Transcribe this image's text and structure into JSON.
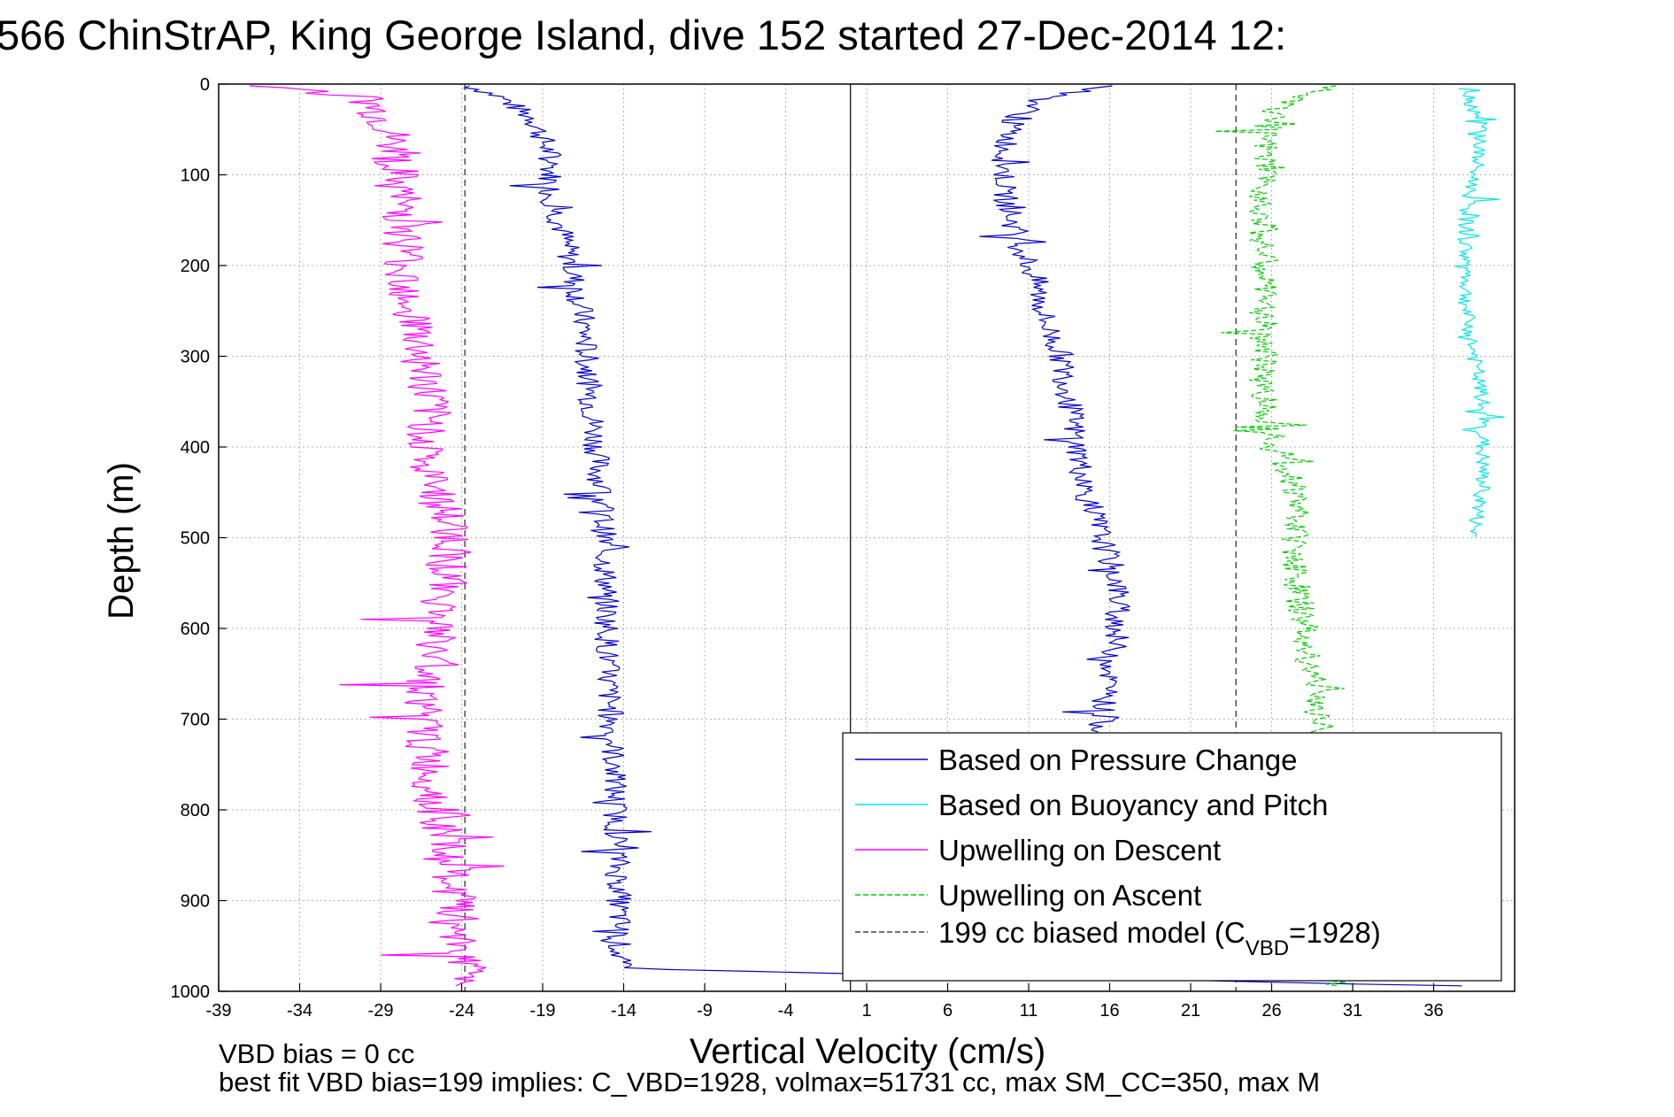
{
  "chart_data": {
    "type": "line",
    "title": "566 ChinStrAP, King George Island, dive 152 started 27-Dec-2014 12:",
    "xlabel": "Vertical Velocity (cm/s)",
    "ylabel": "Depth (m)",
    "xlim": [
      -39,
      41
    ],
    "ylim": [
      0,
      1000
    ],
    "y_reversed": true,
    "grid": true,
    "x_ticks": [
      -39,
      -34,
      -29,
      -24,
      -19,
      -14,
      -9,
      -4,
      1,
      6,
      11,
      16,
      21,
      26,
      31,
      36
    ],
    "y_ticks": [
      0,
      100,
      200,
      300,
      400,
      500,
      600,
      700,
      800,
      900,
      1000
    ],
    "x_tick_labels": [
      "-39",
      "-34",
      "-29",
      "-24",
      "-19",
      "-14",
      "-9",
      "-4",
      "1",
      "6",
      "11",
      "16",
      "21",
      "26",
      "31",
      "36"
    ],
    "y_tick_labels": [
      "0",
      "100",
      "200",
      "300",
      "400",
      "500",
      "600",
      "700",
      "800",
      "900",
      "1000"
    ],
    "legend_position": "bottom-right",
    "reference_lines": {
      "zero_velocity_x": 0,
      "model_lines_x": [
        -23.8,
        23.8
      ]
    },
    "series": [
      {
        "name": "Based on Pressure Change",
        "color": "#0000cc",
        "style": "solid",
        "x": [
          -23.5,
          -21.5,
          -19.5,
          -18.5,
          -18.5,
          -18,
          -17.5,
          -17,
          -16.5,
          -16.3,
          -16,
          -15.7,
          -15.4,
          -15.2,
          -15.1,
          -15,
          -15,
          -14.8,
          -14.6,
          -14.5,
          -14.3,
          -14.3,
          40
        ],
        "y": [
          2,
          15,
          40,
          80,
          120,
          150,
          180,
          220,
          260,
          300,
          350,
          400,
          450,
          500,
          550,
          600,
          650,
          700,
          750,
          800,
          900,
          975,
          995
        ]
      },
      {
        "name": "Based on Pressure Change",
        "color": "#0000cc",
        "style": "solid",
        "x": [
          16,
          12,
          10,
          9.5,
          9.5,
          10,
          10.5,
          11.5,
          12,
          13,
          13.5,
          14,
          14.5,
          15.5,
          16.5,
          16.5,
          16,
          15.5,
          15.5
        ],
        "y": [
          2,
          15,
          40,
          80,
          120,
          150,
          180,
          220,
          260,
          300,
          350,
          400,
          450,
          500,
          550,
          600,
          650,
          700,
          715
        ]
      },
      {
        "name": "Based on Buoyancy and Pitch",
        "color": "#00e6e6",
        "style": "solid",
        "x": [
          38,
          39,
          38.5,
          38,
          38,
          38,
          38.5,
          39,
          39,
          39,
          38.5,
          38.5
        ],
        "y": [
          5,
          50,
          100,
          150,
          200,
          250,
          300,
          350,
          400,
          450,
          490,
          500
        ]
      },
      {
        "name": "Upwelling on Descent",
        "color": "#ff00ff",
        "style": "solid",
        "x": [
          -36,
          -30,
          -28.5,
          -28,
          -27.5,
          -27.5,
          -27,
          -26.5,
          -26,
          -26,
          -26.5,
          -25.5,
          -25,
          -24.5,
          -25,
          -25.5,
          -26,
          -26.5,
          -26,
          -25.5,
          -25,
          -24.5,
          -24,
          -23.5,
          -23.5
        ],
        "y": [
          2,
          15,
          50,
          100,
          150,
          200,
          250,
          300,
          350,
          400,
          420,
          450,
          480,
          500,
          550,
          600,
          650,
          700,
          750,
          800,
          850,
          900,
          950,
          980,
          995
        ]
      },
      {
        "name": "Upwelling on Ascent",
        "color": "#00cc00",
        "style": "dashed",
        "x": [
          30,
          26.5,
          25.5,
          25.5,
          25.5,
          25.5,
          25.5,
          25.5,
          25.5,
          26.5,
          27.5,
          27.5,
          27.5,
          28,
          28.5,
          29,
          30
        ],
        "y": [
          2,
          25,
          50,
          100,
          150,
          200,
          250,
          300,
          350,
          400,
          450,
          500,
          550,
          600,
          650,
          700,
          995
        ]
      },
      {
        "name": "199 cc biased model (C",
        "name_sub": "VBD",
        "name_tail": "=1928)",
        "color": "#444444",
        "style": "dashed",
        "x": [
          -23.8,
          -23.8
        ],
        "y": [
          0,
          1000
        ]
      }
    ],
    "footer": [
      "VBD bias = 0 cc",
      "best fit VBD bias=199 implies: C_VBD=1928, volmax=51731 cc, max SM_CC=350, max M"
    ]
  }
}
